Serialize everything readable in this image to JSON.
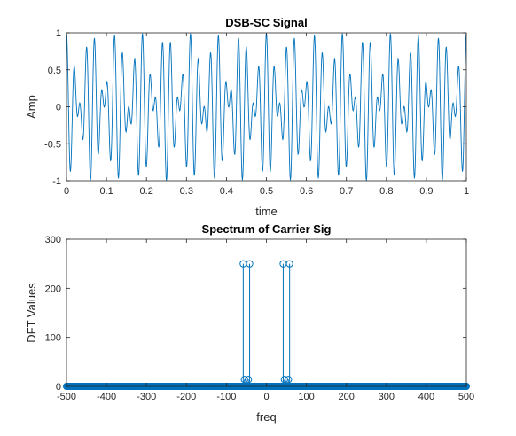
{
  "chart_data": [
    {
      "type": "line",
      "title": "DSB-SC Signal",
      "xlabel": "time",
      "ylabel": "Amp",
      "xlim": [
        0,
        1
      ],
      "ylim": [
        -1,
        1
      ],
      "xticks": [
        0,
        0.1,
        0.2,
        0.3,
        0.4,
        0.5,
        0.6,
        0.7,
        0.8,
        0.9,
        1
      ],
      "yticks": [
        -1,
        -0.5,
        0,
        0.5,
        1
      ],
      "xtick_labels": [
        "0",
        "0.1",
        "0.2",
        "0.3",
        "0.4",
        "0.5",
        "0.6",
        "0.7",
        "0.8",
        "0.9",
        "1"
      ],
      "ytick_labels": [
        "-1",
        "-0.5",
        "0",
        "0.5",
        "1"
      ],
      "grid": false,
      "series": [
        {
          "expression": "cos(2*pi*8*t) * cos(2*pi*50*t)",
          "t_range": [
            0,
            1
          ],
          "samples": 1000,
          "color": "#0072BD"
        }
      ]
    },
    {
      "type": "stem",
      "title": "Spectrum of Carrier Sig",
      "xlabel": "freq",
      "ylabel": "DFT Values",
      "xlim": [
        -500,
        500
      ],
      "ylim": [
        0,
        300
      ],
      "xticks": [
        -500,
        -400,
        -300,
        -200,
        -100,
        0,
        100,
        200,
        300,
        400,
        500
      ],
      "yticks": [
        0,
        100,
        200,
        300
      ],
      "xtick_labels": [
        "-500",
        "-400",
        "-300",
        "-200",
        "-100",
        "0",
        "100",
        "200",
        "300",
        "400",
        "500"
      ],
      "ytick_labels": [
        "0",
        "100",
        "200",
        "300"
      ],
      "grid": false,
      "baseline_value": 0,
      "baseline_range": [
        -500,
        500
      ],
      "baseline_step": 1,
      "peaks": [
        {
          "x": -58,
          "y": 250
        },
        {
          "x": -55,
          "y": 14
        },
        {
          "x": -45,
          "y": 14
        },
        {
          "x": -42,
          "y": 250
        },
        {
          "x": 42,
          "y": 250
        },
        {
          "x": 45,
          "y": 14
        },
        {
          "x": 55,
          "y": 14
        },
        {
          "x": 58,
          "y": 250
        }
      ],
      "color": "#0072BD"
    }
  ]
}
